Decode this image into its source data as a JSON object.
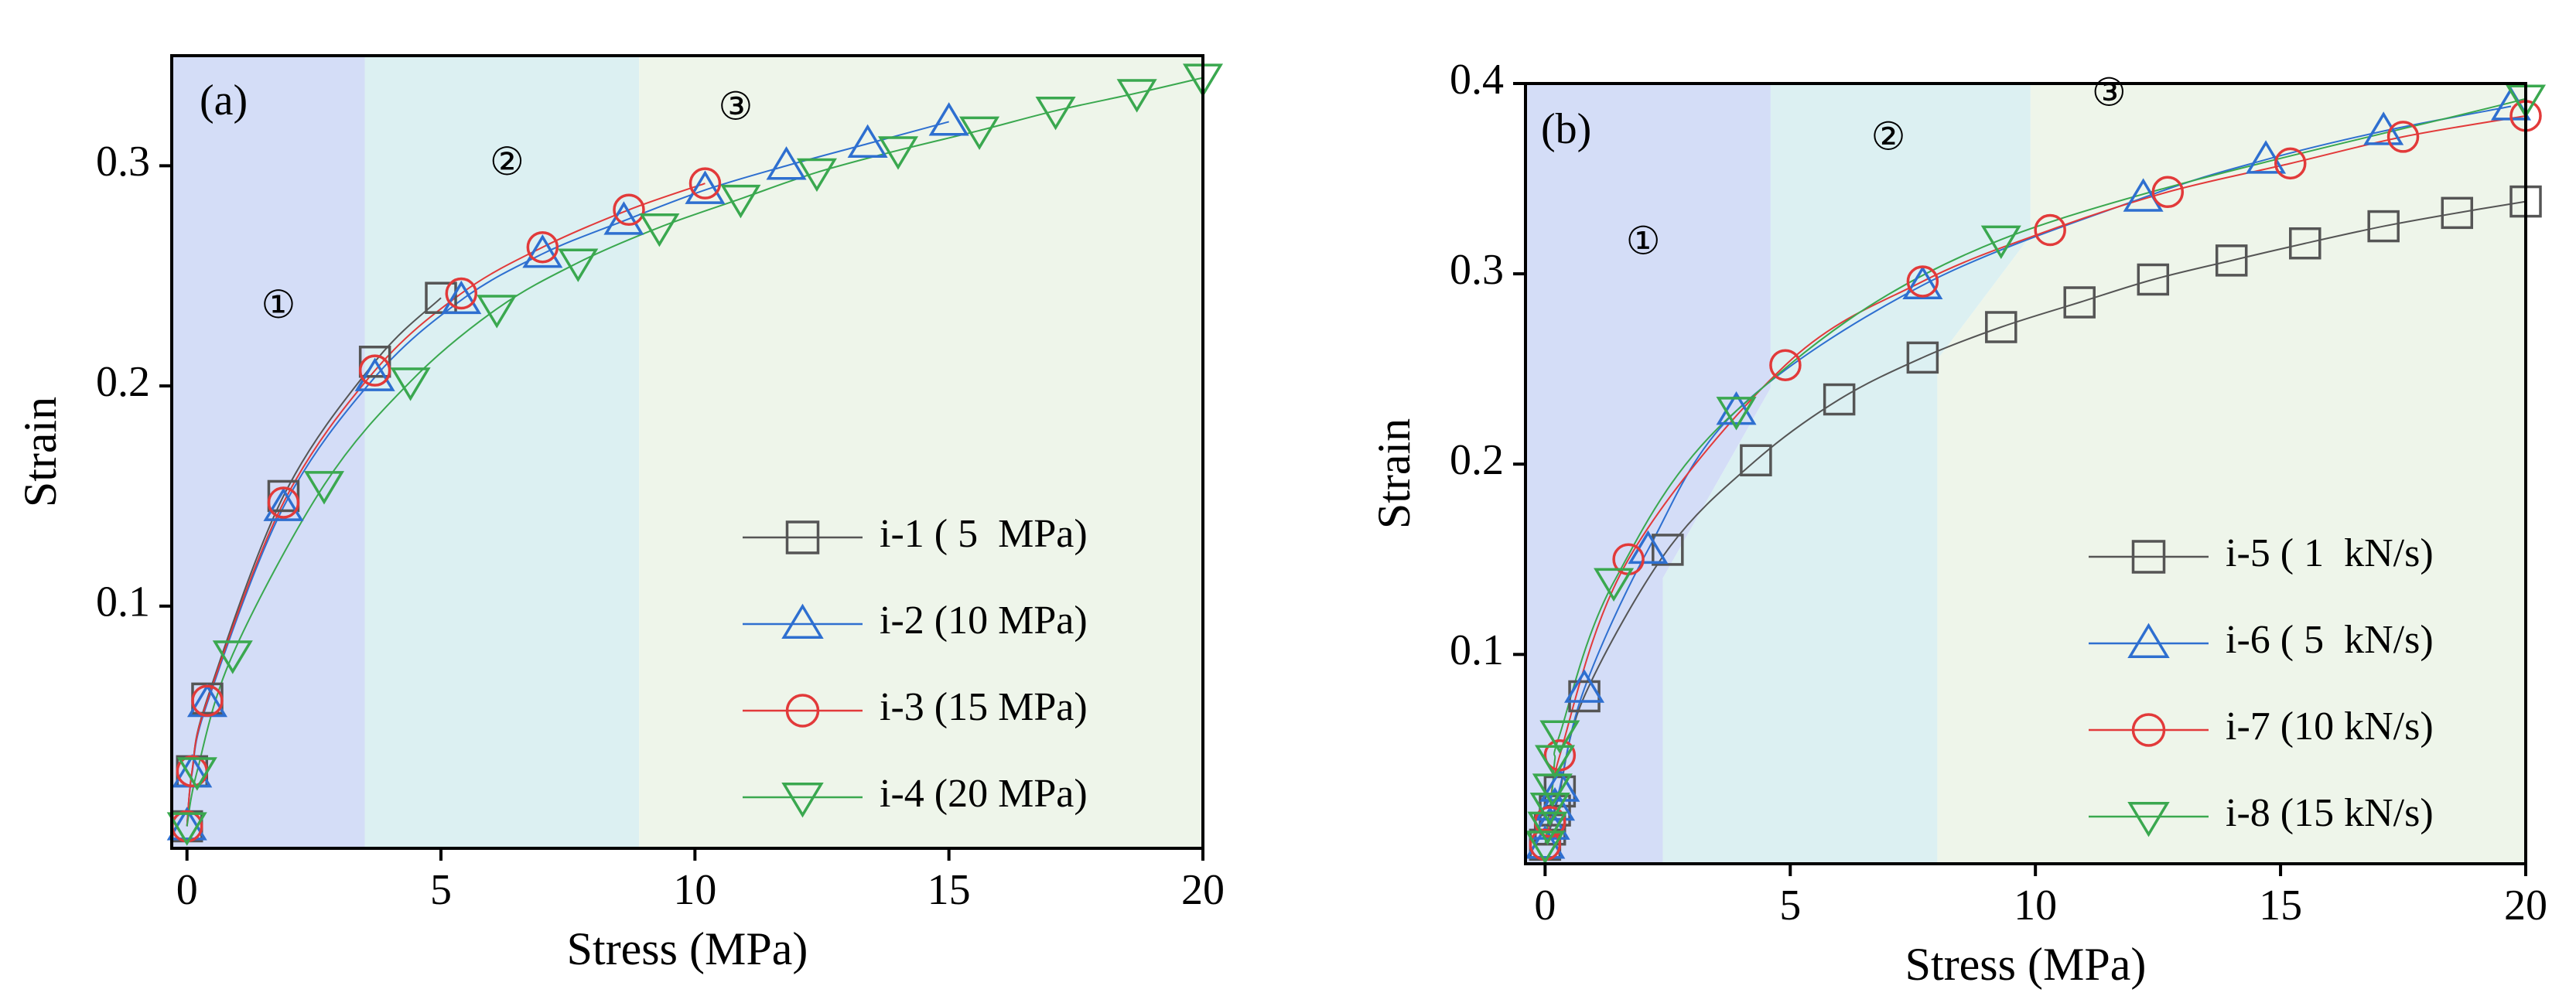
{
  "colors": {
    "region1": "#d4ddf7",
    "region2": "#dcf0f2",
    "region3": "#eef5ea",
    "series_black": "#555555",
    "series_blue": "#2e6fd0",
    "series_red": "#e23a3a",
    "series_green": "#3aa84f"
  },
  "chart_data": [
    {
      "type": "line",
      "panel_label": "(a)",
      "xlabel": "Stress (MPa)",
      "ylabel": "Strain",
      "xlim": [
        -0.3,
        20
      ],
      "ylim": [
        -0.01,
        0.35
      ],
      "xticks": [
        0,
        5,
        10,
        15,
        20
      ],
      "xtick_labels": [
        "0",
        "5",
        "10",
        "15",
        "20"
      ],
      "yticks": [
        0.1,
        0.2,
        0.3
      ],
      "ytick_labels": [
        "0.1",
        "0.2",
        "0.3"
      ],
      "grid": false,
      "legend_position": "bottom-right",
      "regions": [
        {
          "label": "①",
          "x0": -0.3,
          "x1": 3.5,
          "color": "region1",
          "label_at": [
            1.8,
            0.235
          ]
        },
        {
          "label": "②",
          "x0": 3.5,
          "x1": 8.9,
          "color": "region2",
          "label_at": [
            6.3,
            0.3
          ]
        },
        {
          "label": "③",
          "x0": 8.9,
          "x1": 20,
          "color": "region3",
          "label_at": [
            10.8,
            0.325
          ]
        }
      ],
      "series": [
        {
          "name": "i-1 ( 5  MPa)",
          "marker": "square",
          "color": "series_black",
          "x": [
            0,
            0.1,
            0.4,
            1.9,
            3.7,
            5.0
          ],
          "y": [
            0,
            0.025,
            0.058,
            0.15,
            0.211,
            0.24
          ]
        },
        {
          "name": "i-2 (10 MPa)",
          "marker": "triangle-up",
          "color": "series_blue",
          "x": [
            0,
            0.1,
            0.4,
            1.9,
            3.7,
            5.4,
            7.0,
            8.6,
            10.2,
            11.8,
            13.4,
            15.0
          ],
          "y": [
            0,
            0.024,
            0.056,
            0.145,
            0.204,
            0.239,
            0.26,
            0.275,
            0.289,
            0.3,
            0.31,
            0.32
          ]
        },
        {
          "name": "i-3 (15 MPa)",
          "marker": "circle",
          "color": "series_red",
          "x": [
            0,
            0.1,
            0.4,
            1.9,
            3.7,
            5.4,
            7.0,
            8.7,
            10.2
          ],
          "y": [
            0,
            0.025,
            0.057,
            0.147,
            0.207,
            0.242,
            0.263,
            0.28,
            0.292
          ]
        },
        {
          "name": "i-4 (20 MPa)",
          "marker": "triangle-down",
          "color": "series_green",
          "x": [
            0,
            0.2,
            0.9,
            2.7,
            4.4,
            6.1,
            7.7,
            9.3,
            10.9,
            12.4,
            14.0,
            15.6,
            17.1,
            18.7,
            20.0
          ],
          "y": [
            0,
            0.025,
            0.078,
            0.155,
            0.202,
            0.235,
            0.256,
            0.272,
            0.285,
            0.297,
            0.307,
            0.316,
            0.325,
            0.333,
            0.34
          ]
        }
      ]
    },
    {
      "type": "line",
      "panel_label": "(b)",
      "xlabel": "Stress (MPa)",
      "ylabel": "Strain",
      "xlim": [
        -0.4,
        20
      ],
      "ylim": [
        -0.01,
        0.4
      ],
      "xticks": [
        0,
        5,
        10,
        15,
        20
      ],
      "xtick_labels": [
        "0",
        "5",
        "10",
        "15",
        "20"
      ],
      "yticks": [
        0.1,
        0.2,
        0.3,
        0.4
      ],
      "ytick_labels": [
        "0.1",
        "0.2",
        "0.3",
        "0.4"
      ],
      "grid": false,
      "legend_position": "bottom-right",
      "regions": [
        {
          "label": "①",
          "color": "region1",
          "label_at": [
            2.0,
            0.315
          ],
          "polygon": [
            [
              -0.4,
              -0.01
            ],
            [
              -0.4,
              0.4
            ],
            [
              4.6,
              0.4
            ],
            [
              4.6,
              0.24
            ],
            [
              2.4,
              0.14
            ],
            [
              2.4,
              -0.01
            ]
          ]
        },
        {
          "label": "②",
          "color": "region2",
          "label_at": [
            7.0,
            0.37
          ],
          "polygon": [
            [
              2.4,
              -0.01
            ],
            [
              2.4,
              0.14
            ],
            [
              4.6,
              0.24
            ],
            [
              4.6,
              0.4
            ],
            [
              9.9,
              0.4
            ],
            [
              9.9,
              0.32
            ],
            [
              8.0,
              0.255
            ],
            [
              8.0,
              -0.01
            ]
          ]
        },
        {
          "label": "③",
          "color": "region3",
          "label_at": [
            11.5,
            0.393
          ],
          "polygon": [
            [
              8.0,
              -0.01
            ],
            [
              8.0,
              0.255
            ],
            [
              9.9,
              0.32
            ],
            [
              9.9,
              0.4
            ],
            [
              20,
              0.4
            ],
            [
              20,
              -0.01
            ]
          ]
        }
      ],
      "series": [
        {
          "name": "i-5 ( 1  kN/s)",
          "marker": "square",
          "color": "series_black",
          "x": [
            0,
            0.1,
            0.2,
            0.3,
            0.8,
            2.5,
            4.3,
            6.0,
            7.7,
            9.3,
            10.9,
            12.4,
            14.0,
            15.5,
            17.1,
            18.6,
            20.0
          ],
          "y": [
            0,
            0.008,
            0.018,
            0.028,
            0.078,
            0.155,
            0.202,
            0.234,
            0.256,
            0.272,
            0.285,
            0.297,
            0.307,
            0.316,
            0.325,
            0.332,
            0.338
          ]
        },
        {
          "name": "i-6 ( 5  kN/s)",
          "marker": "triangle-up",
          "color": "series_blue",
          "x": [
            0,
            0.1,
            0.2,
            0.3,
            0.8,
            2.1,
            3.9,
            7.7,
            12.2,
            14.7,
            17.1,
            19.7
          ],
          "y": [
            0,
            0.01,
            0.02,
            0.03,
            0.082,
            0.155,
            0.228,
            0.294,
            0.34,
            0.36,
            0.375,
            0.388
          ]
        },
        {
          "name": "i-7 (10 kN/s)",
          "marker": "circle",
          "color": "series_red",
          "x": [
            0,
            0.1,
            0.3,
            1.7,
            4.9,
            7.7,
            10.3,
            12.7,
            15.2,
            17.5,
            20.0
          ],
          "y": [
            0,
            0.012,
            0.047,
            0.15,
            0.252,
            0.296,
            0.323,
            0.343,
            0.358,
            0.372,
            0.383
          ]
        },
        {
          "name": "i-8 (15 kN/s)",
          "marker": "triangle-down",
          "color": "series_green",
          "x": [
            0,
            0.05,
            0.1,
            0.15,
            0.2,
            0.3,
            1.4,
            3.9,
            9.3,
            20.0
          ],
          "y": [
            0,
            0.01,
            0.02,
            0.03,
            0.045,
            0.058,
            0.138,
            0.228,
            0.318,
            0.392
          ]
        }
      ]
    }
  ]
}
